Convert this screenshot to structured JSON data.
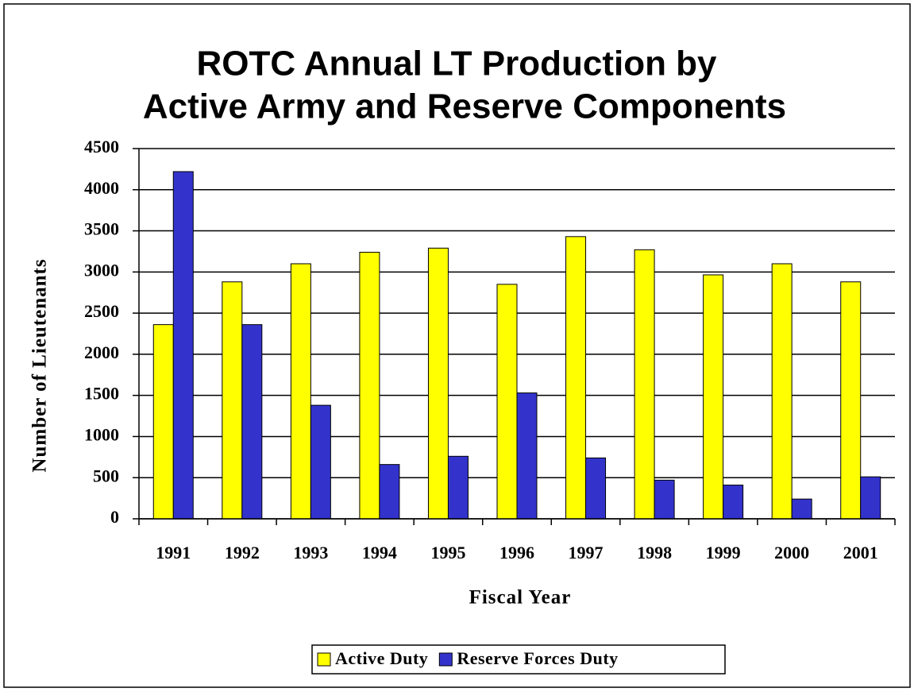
{
  "chart_data": {
    "type": "bar",
    "title": [
      "ROTC Annual LT Production by",
      "Active Army and Reserve Components"
    ],
    "x_label": "Fiscal Year",
    "y_label": "Number of Lieutenants",
    "categories": [
      "1991",
      "1992",
      "1993",
      "1994",
      "1995",
      "1996",
      "1997",
      "1998",
      "1999",
      "2000",
      "2001"
    ],
    "series": [
      {
        "name": "Active Duty",
        "color": "#ffff00",
        "values": [
          2360,
          2880,
          3100,
          3240,
          3290,
          2850,
          3430,
          3270,
          2965,
          3100,
          2880
        ]
      },
      {
        "name": "Reserve Forces Duty",
        "color": "#3333cc",
        "values": [
          4220,
          2360,
          1380,
          660,
          760,
          1530,
          740,
          470,
          410,
          240,
          510
        ]
      }
    ],
    "ylim": [
      0,
      4500
    ],
    "yticks": [
      0,
      500,
      1000,
      1500,
      2000,
      2500,
      3000,
      3500,
      4000,
      4500
    ],
    "grid": true,
    "legend": "bottom"
  }
}
